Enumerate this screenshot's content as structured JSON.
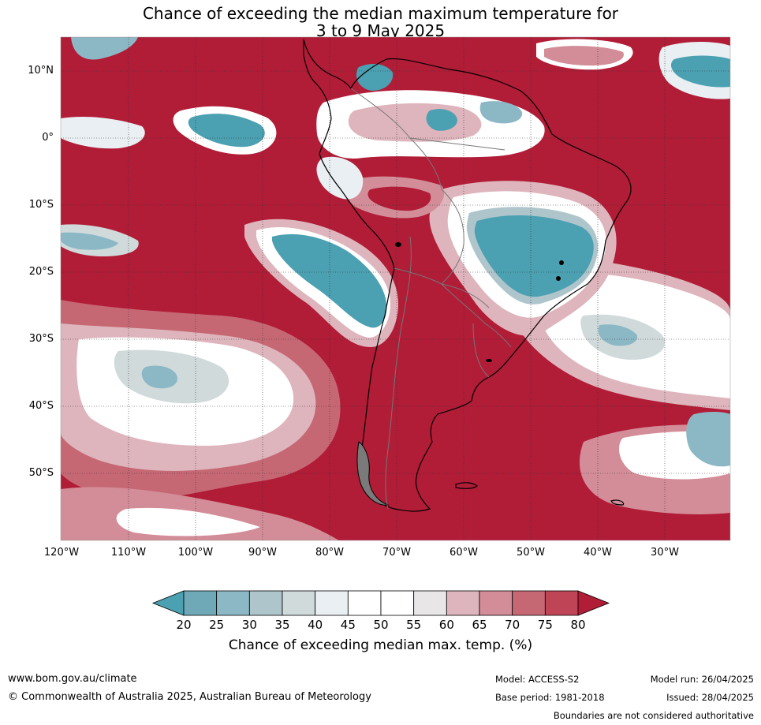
{
  "title": {
    "line1": "Chance of exceeding the median maximum temperature for",
    "line2": "3 to 9 May 2025"
  },
  "map": {
    "lat_labels": [
      "10°N",
      "0°",
      "10°S",
      "20°S",
      "30°S",
      "40°S",
      "50°S"
    ],
    "lon_labels": [
      "120°W",
      "110°W",
      "100°W",
      "90°W",
      "80°W",
      "70°W",
      "60°W",
      "50°W",
      "40°W",
      "30°W"
    ],
    "colors": {
      "c20": "#4ba0b1",
      "c25": "#6fa9b7",
      "c30": "#8cb8c6",
      "c35": "#aec5cb",
      "c40": "#d1dadb",
      "c45": "#e9eff2",
      "c50": "#ffffff",
      "c55": "#ffffff",
      "c60": "#e8e6e7",
      "c65": "#deb5bc",
      "c70": "#d38d98",
      "c75": "#c66874",
      "c80": "#bf4556",
      "c80plus": "#b11c37"
    }
  },
  "colorbar": {
    "ticks": [
      "20",
      "25",
      "30",
      "35",
      "40",
      "45",
      "50",
      "55",
      "60",
      "65",
      "70",
      "75",
      "80"
    ],
    "label": "Chance of exceeding median max. temp. (%)"
  },
  "footer": {
    "website": "www.bom.gov.au/climate",
    "copyright": "© Commonwealth of Australia 2025, Australian Bureau of Meteorology",
    "model": "Model: ACCESS-S2",
    "base_period": "Base period: 1981-2018",
    "model_run": "Model run: 26/04/2025",
    "issued": "Issued: 28/04/2025",
    "disclaimer": "Boundaries are not considered authoritative"
  }
}
